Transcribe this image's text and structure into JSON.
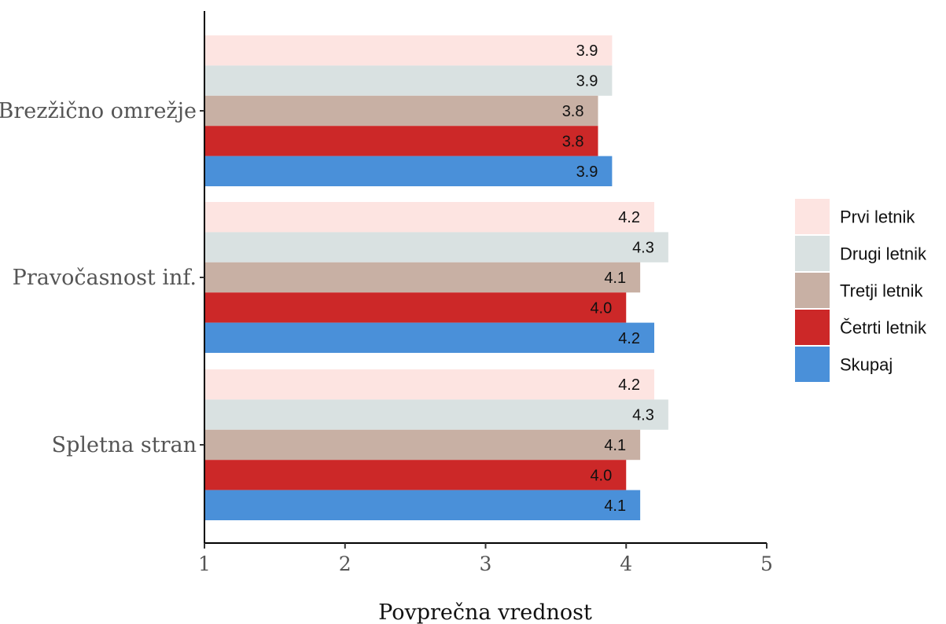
{
  "chart_data": {
    "type": "bar",
    "orientation": "horizontal",
    "categories": [
      "Brezžično omrežje",
      "Pravočasnost inf.",
      "Spletna stran"
    ],
    "series": [
      {
        "name": "Prvi letnik",
        "color": "#FDE4E1",
        "values": [
          3.9,
          4.2,
          4.2
        ],
        "labels": [
          "3.9",
          "4.2",
          "4.2"
        ]
      },
      {
        "name": "Drugi letnik",
        "color": "#D9E1E1",
        "values": [
          3.9,
          4.3,
          4.3
        ],
        "labels": [
          "3.9",
          "4.3",
          "4.3"
        ]
      },
      {
        "name": "Tretji letnik",
        "color": "#C8B0A4",
        "values": [
          3.8,
          4.1,
          4.1
        ],
        "labels": [
          "3.8",
          "4.1",
          "4.1"
        ]
      },
      {
        "name": "Četrti letnik",
        "color": "#CC2828",
        "values": [
          3.8,
          4.0,
          4.0
        ],
        "labels": [
          "3.8",
          "4.0",
          "4.0"
        ]
      },
      {
        "name": "Skupaj",
        "color": "#4A90D9",
        "values": [
          3.9,
          4.2,
          4.1
        ],
        "labels": [
          "3.9",
          "4.2",
          "4.1"
        ]
      }
    ],
    "xlabel": "Povprečna vrednost",
    "ylabel": "",
    "xlim": [
      1,
      5
    ],
    "xticks": [
      1,
      2,
      3,
      4,
      5
    ],
    "xtick_labels": [
      "1",
      "2",
      "3",
      "4",
      "5"
    ],
    "grid": false,
    "legend_position": "right"
  }
}
